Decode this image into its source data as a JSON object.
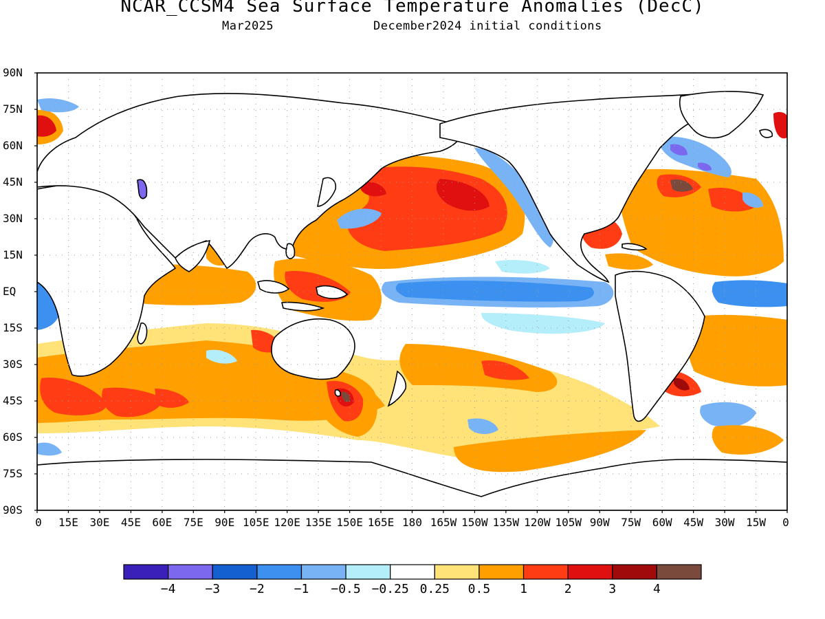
{
  "header": {
    "title": "NCAR_CCSM4 Sea Surface Temperature Anomalies (DecC)",
    "subtitle_left": "Mar2025",
    "subtitle_right": "December2024 initial conditions"
  },
  "map": {
    "lat_labels": [
      "90N",
      "75N",
      "60N",
      "45N",
      "30N",
      "15N",
      "EQ",
      "15S",
      "30S",
      "45S",
      "60S",
      "75S",
      "90S"
    ],
    "lon_labels": [
      "0",
      "15E",
      "30E",
      "45E",
      "60E",
      "75E",
      "90E",
      "105E",
      "120E",
      "135E",
      "150E",
      "165E",
      "180",
      "165W",
      "150W",
      "135W",
      "120W",
      "105W",
      "90W",
      "75W",
      "60W",
      "45W",
      "30W",
      "15W",
      "0"
    ],
    "lat_range": [
      -90,
      90
    ],
    "lon_range": [
      0,
      360
    ],
    "grid": true
  },
  "colorbar": {
    "colors": [
      "#3a1fb8",
      "#7b68ee",
      "#1560d0",
      "#3c91f0",
      "#78b4f5",
      "#b4eefa",
      "#ffffff",
      "#ffe278",
      "#ffa000",
      "#ff3c14",
      "#e01010",
      "#a00a0a",
      "#7a4a3c"
    ],
    "labels": [
      "-4",
      "-3",
      "-2",
      "-1",
      "-0.5",
      "-0.25",
      "0.25",
      "0.5",
      "1",
      "2",
      "3",
      "4"
    ]
  }
}
